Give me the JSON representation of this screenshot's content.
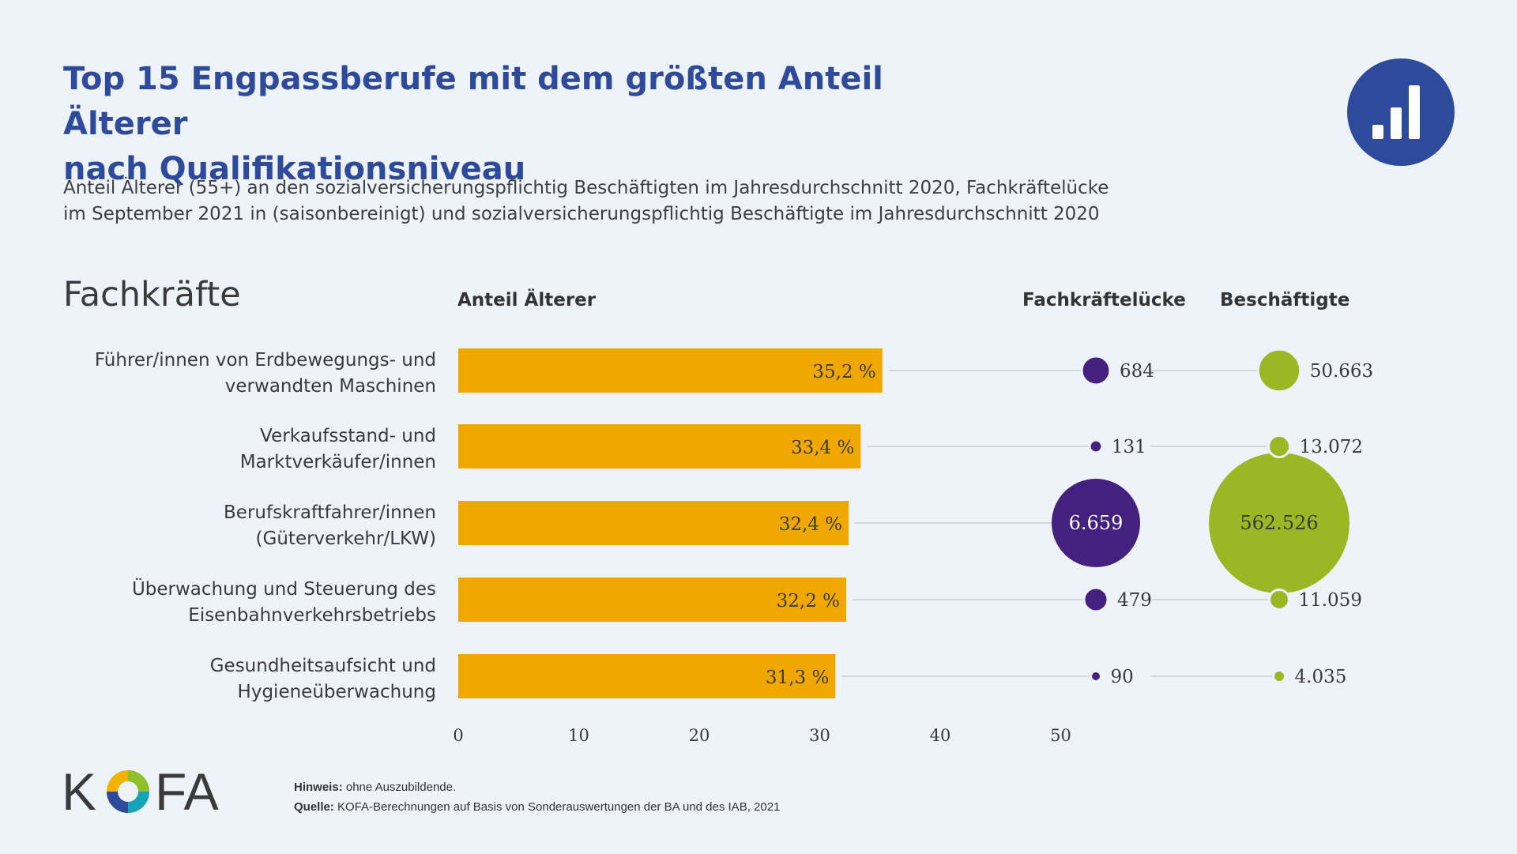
{
  "header": {
    "title_line1": "Top 15 Engpassberufe mit dem größten Anteil Älterer",
    "title_line2": "nach Qualifikationsniveau",
    "subtitle_line1": "Anteil Älterer (55+) an den sozialversicherungspflichtig Beschäftigten im Jahresdurchschnitt 2020, Fachkräftelücke",
    "subtitle_line2": "im September 2021 in (saisonbereinigt) und sozialversicherungspflichtig Beschäftigte im Jahresdurchschnitt 2020",
    "logo_icon": "bar-chart-icon",
    "logo_color": "#2e4b9b"
  },
  "section": "Fachkräfte",
  "columns": {
    "share": "Anteil Älterer",
    "gap": "Fachkräftelücke",
    "employed": "Beschäftigte"
  },
  "chart_data": {
    "type": "bar",
    "orientation": "horizontal",
    "categories": [
      [
        "Führer/innen von Erdbewegungs- und",
        "verwandten Maschinen"
      ],
      [
        "Verkaufsstand- und",
        "Marktverkäufer/innen"
      ],
      [
        "Berufskraftfahrer/innen",
        "(Güterverkehr/LKW)"
      ],
      [
        "Überwachung und Steuerung des",
        "Eisenbahnverkehrsbetriebs"
      ],
      [
        "Gesundheitsaufsicht und",
        "Hygieneüberwachung"
      ]
    ],
    "series": [
      {
        "values": [
          35.2,
          33.4,
          32.4,
          32.2,
          31.3
        ],
        "labels": [
          "35,2 %",
          "33,4 %",
          "32,4 %",
          "32,2 %",
          "31,3 %"
        ],
        "color": "#f0a800"
      }
    ],
    "bubbles": [
      {
        "values": [
          684,
          131,
          6659,
          479,
          90
        ],
        "labels": [
          "684",
          "131",
          "6.659",
          "479",
          "90"
        ],
        "color": "#45217f"
      },
      {
        "values": [
          50663,
          13072,
          562526,
          11059,
          4035
        ],
        "labels": [
          "50.663",
          "13.072",
          "562.526",
          "11.059",
          "4.035"
        ],
        "color": "#9bb824"
      }
    ],
    "xlim": [
      0,
      50
    ],
    "xticks": [
      0,
      10,
      20,
      30,
      40,
      50
    ],
    "xtick_labels": [
      "0",
      "10",
      "20",
      "30",
      "40",
      "50"
    ],
    "grid": false
  },
  "footer": {
    "note_label": "Hinweis:",
    "note_text": "ohne Auszubildende.",
    "source_label": "Quelle:",
    "source_text": "KOFA-Berechnungen auf Basis von Sonderauswertungen der BA und des IAB, 2021",
    "logo_text_left": "K",
    "logo_text_right": "FA"
  }
}
